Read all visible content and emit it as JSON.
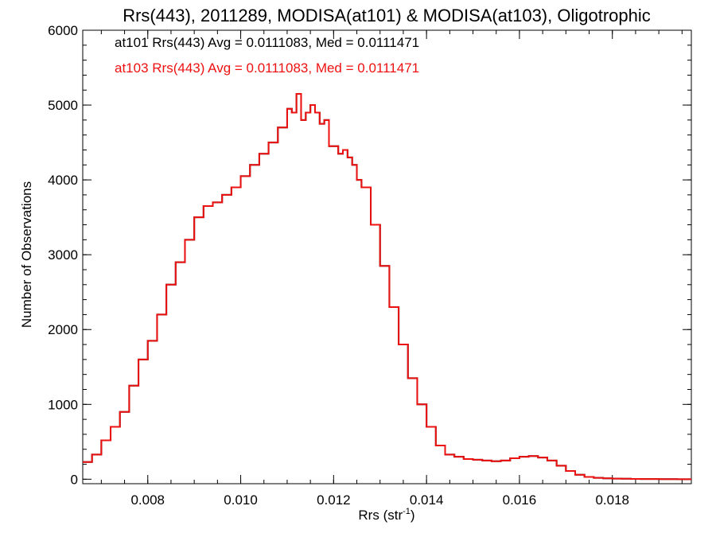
{
  "chart_data": {
    "type": "line",
    "title": "Rrs(443), 2011289, MODISA(at101) & MODISA(at103), Oligotrophic",
    "xlabel": "Rrs (str",
    "xlabel_sup": "-1",
    "xlabel_close": ")",
    "ylabel": "Number of Observations",
    "xlim": [
      0.0066,
      0.0197
    ],
    "ylim": [
      -60,
      6000
    ],
    "xticks": [
      0.008,
      0.01,
      0.012,
      0.014,
      0.016,
      0.018
    ],
    "xtick_labels": [
      "0.008",
      "0.010",
      "0.012",
      "0.014",
      "0.016",
      "0.018"
    ],
    "yticks": [
      0,
      1000,
      2000,
      3000,
      4000,
      5000,
      6000
    ],
    "ytick_labels": [
      "0",
      "1000",
      "2000",
      "3000",
      "4000",
      "5000",
      "6000"
    ],
    "style": "step",
    "grid": false,
    "annotations": [
      {
        "text": "at101 Rrs(443) Avg = 0.0111083, Med = 0.0111471",
        "color": "#000000"
      },
      {
        "text": "at103 Rrs(443) Avg = 0.0111083, Med = 0.0111471",
        "color": "#ee1111"
      }
    ],
    "series": [
      {
        "name": "at101 Rrs(443)",
        "color": "#000000",
        "x": [
          0.0066,
          0.0068,
          0.007,
          0.0072,
          0.0074,
          0.0076,
          0.0078,
          0.008,
          0.0082,
          0.0084,
          0.0086,
          0.0088,
          0.009,
          0.0092,
          0.0094,
          0.0096,
          0.0098,
          0.01,
          0.0102,
          0.0104,
          0.0106,
          0.0108,
          0.011,
          0.0111,
          0.0112,
          0.0113,
          0.0114,
          0.0115,
          0.0116,
          0.0117,
          0.0118,
          0.0119,
          0.012,
          0.0121,
          0.0122,
          0.0123,
          0.0124,
          0.0125,
          0.0126,
          0.0128,
          0.013,
          0.0132,
          0.0134,
          0.0136,
          0.0138,
          0.014,
          0.0142,
          0.0144,
          0.0146,
          0.0148,
          0.015,
          0.0152,
          0.0154,
          0.0156,
          0.0158,
          0.016,
          0.0162,
          0.0164,
          0.0166,
          0.0168,
          0.017,
          0.0172,
          0.0174,
          0.0176,
          0.0178,
          0.018,
          0.0182,
          0.0184,
          0.0186,
          0.0188,
          0.019,
          0.0192,
          0.0194,
          0.0197
        ],
        "values": [
          230,
          330,
          520,
          700,
          900,
          1250,
          1600,
          1850,
          2200,
          2600,
          2900,
          3200,
          3500,
          3650,
          3700,
          3800,
          3900,
          4050,
          4200,
          4350,
          4500,
          4700,
          4950,
          4900,
          5150,
          4800,
          4900,
          5000,
          4900,
          4750,
          4800,
          4450,
          4450,
          4350,
          4400,
          4300,
          4200,
          4000,
          3900,
          3400,
          2850,
          2300,
          1800,
          1350,
          1000,
          700,
          450,
          330,
          300,
          270,
          260,
          250,
          240,
          250,
          280,
          300,
          310,
          290,
          250,
          180,
          110,
          60,
          30,
          18,
          12,
          8,
          6,
          4,
          3,
          2,
          1,
          1,
          0,
          0
        ]
      },
      {
        "name": "at103 Rrs(443)",
        "color": "#ee1111",
        "x": [
          0.0066,
          0.0068,
          0.007,
          0.0072,
          0.0074,
          0.0076,
          0.0078,
          0.008,
          0.0082,
          0.0084,
          0.0086,
          0.0088,
          0.009,
          0.0092,
          0.0094,
          0.0096,
          0.0098,
          0.01,
          0.0102,
          0.0104,
          0.0106,
          0.0108,
          0.011,
          0.0111,
          0.0112,
          0.0113,
          0.0114,
          0.0115,
          0.0116,
          0.0117,
          0.0118,
          0.0119,
          0.012,
          0.0121,
          0.0122,
          0.0123,
          0.0124,
          0.0125,
          0.0126,
          0.0128,
          0.013,
          0.0132,
          0.0134,
          0.0136,
          0.0138,
          0.014,
          0.0142,
          0.0144,
          0.0146,
          0.0148,
          0.015,
          0.0152,
          0.0154,
          0.0156,
          0.0158,
          0.016,
          0.0162,
          0.0164,
          0.0166,
          0.0168,
          0.017,
          0.0172,
          0.0174,
          0.0176,
          0.0178,
          0.018,
          0.0182,
          0.0184,
          0.0186,
          0.0188,
          0.019,
          0.0192,
          0.0194,
          0.0197
        ],
        "values": [
          230,
          330,
          520,
          700,
          900,
          1250,
          1600,
          1850,
          2200,
          2600,
          2900,
          3200,
          3500,
          3650,
          3700,
          3800,
          3900,
          4050,
          4200,
          4350,
          4500,
          4700,
          4950,
          4900,
          5150,
          4800,
          4900,
          5000,
          4900,
          4750,
          4800,
          4450,
          4450,
          4350,
          4400,
          4300,
          4200,
          4000,
          3900,
          3400,
          2850,
          2300,
          1800,
          1350,
          1000,
          700,
          450,
          330,
          300,
          270,
          260,
          250,
          240,
          250,
          280,
          300,
          310,
          290,
          250,
          180,
          110,
          60,
          30,
          18,
          12,
          8,
          6,
          4,
          3,
          2,
          1,
          1,
          0,
          0
        ]
      }
    ]
  }
}
